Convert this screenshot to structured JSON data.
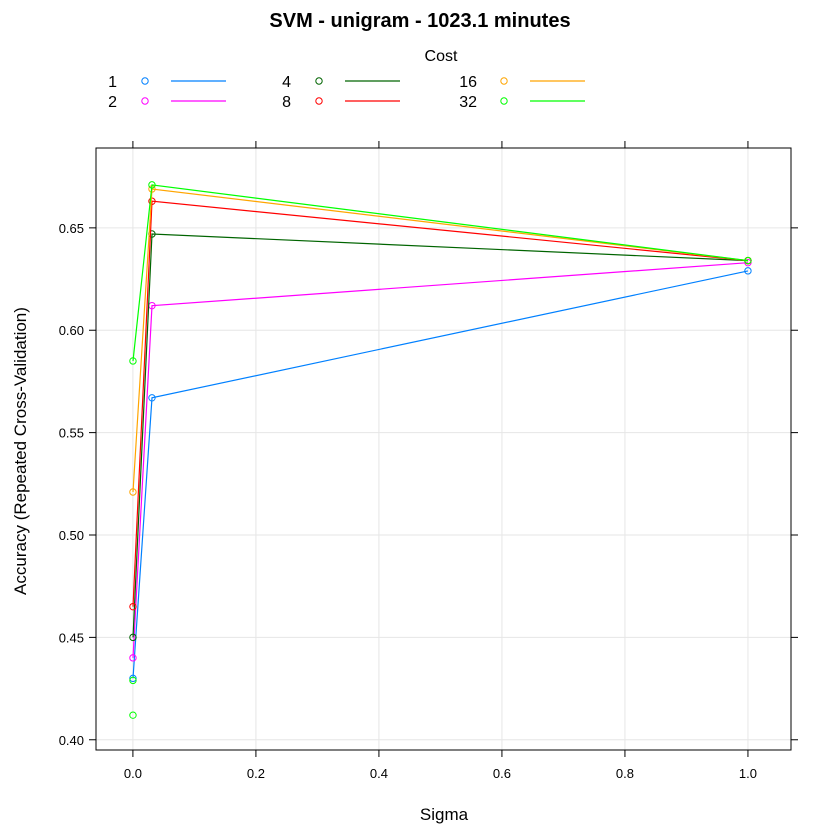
{
  "chart_data": {
    "type": "line",
    "title": "SVM - unigram - 1023.1 minutes",
    "xlabel": "Sigma",
    "ylabel": "Accuracy (Repeated Cross-Validation)",
    "xlim": [
      -0.06,
      1.07
    ],
    "ylim": [
      0.395,
      0.689
    ],
    "x_ticks": [
      0.0,
      0.2,
      0.4,
      0.6,
      0.8,
      1.0
    ],
    "x_tick_labels": [
      "0.0",
      "0.2",
      "0.4",
      "0.6",
      "0.8",
      "1.0"
    ],
    "y_ticks": [
      0.4,
      0.45,
      0.5,
      0.55,
      0.6,
      0.65
    ],
    "y_tick_labels": [
      "0.40",
      "0.45",
      "0.50",
      "0.55",
      "0.60",
      "0.65"
    ],
    "grid": true,
    "legend": {
      "title": "Cost",
      "placement": "top"
    },
    "x": [
      0.0001,
      0.031,
      1.0
    ],
    "series": [
      {
        "name": "1",
        "color": "#0080ff",
        "values": [
          0.43,
          0.567,
          0.629
        ]
      },
      {
        "name": "2",
        "color": "#ff00ff",
        "values": [
          0.44,
          0.612,
          0.633
        ]
      },
      {
        "name": "4",
        "color": "#006400",
        "values": [
          0.45,
          0.647,
          0.634
        ]
      },
      {
        "name": "8",
        "color": "#ff0000",
        "values": [
          0.465,
          0.663,
          0.634
        ]
      },
      {
        "name": "16",
        "color": "#ffa500",
        "values": [
          0.521,
          0.669,
          0.634
        ]
      },
      {
        "name": "32",
        "color": "#00ff00",
        "values": [
          0.585,
          0.671,
          0.634
        ]
      }
    ],
    "extra_points": [
      {
        "series": "32",
        "x": 0.0001,
        "y": 0.429
      },
      {
        "series": "32",
        "x": 0.0001,
        "y": 0.412
      }
    ]
  }
}
